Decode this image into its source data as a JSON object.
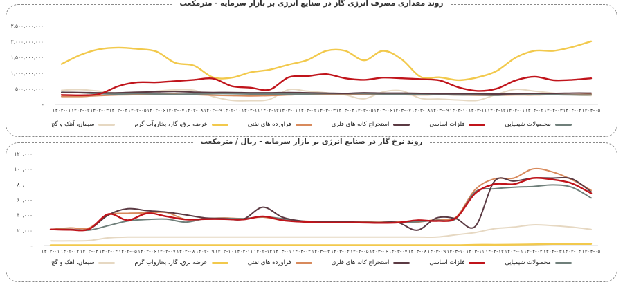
{
  "chart_data": [
    {
      "type": "line",
      "title": "روند مقداری مصرف انرژی گاز در صنایع انرژی بر بازار سرمایه - مترمکعب",
      "categories": [
        "۱۴۰۲-۰۱",
        "۱۴۰۲-۰۲",
        "۱۴۰۲-۰۳",
        "۱۴۰۲-۰۴",
        "۱۴۰۲-۰۵",
        "۱۴۰۲-۰۶",
        "۱۴۰۲-۰۷",
        "۱۴۰۲-۰۸",
        "۱۴۰۲-۰۹",
        "۱۴۰۲-۱۰",
        "۱۴۰۲-۱۱",
        "۱۴۰۲-۱۲",
        "۱۴۰۳-۰۱",
        "۱۴۰۳-۰۲",
        "۱۴۰۳-۰۳",
        "۱۴۰۳-۰۴",
        "۱۴۰۳-۰۵",
        "۱۴۰۳-۰۶",
        "۱۴۰۳-۰۷",
        "۱۴۰۳-۰۸",
        "۱۴۰۳-۰۹",
        "۱۴۰۳-۱۰",
        "۱۴۰۳-۱۱",
        "۱۴۰۳-۱۲",
        "۱۴۰۴-۰۱",
        "۱۴۰۴-۰۲",
        "۱۴۰۴-۰۳",
        "۱۴۰۴-۰۴",
        "۱۴۰۴-۰۵"
      ],
      "yticks": [
        0,
        500,
        1000,
        1500,
        2000,
        2500
      ],
      "ytick_labels": [
        "-",
        "۵۰۰,۰۰۰,۰۰۰",
        "۱,۰۰۰,۰۰۰,۰۰۰",
        "۱,۵۰۰,۰۰۰,۰۰۰",
        "۲,۰۰۰,۰۰۰,۰۰۰",
        "۲,۵۰۰,۰۰۰,۰۰۰"
      ],
      "ylim": [
        0,
        2500
      ],
      "series": [
        {
          "name": "محصولات شیمیایی",
          "color": "#6f7f7a",
          "values": [
            390,
            370,
            340,
            330,
            340,
            330,
            320,
            330,
            340,
            340,
            330,
            330,
            330,
            330,
            340,
            340,
            340,
            330,
            330,
            320,
            310,
            300,
            300,
            290,
            320,
            320,
            310,
            300,
            300
          ]
        },
        {
          "name": "فلزات اساسی",
          "color": "#c0141b",
          "values": [
            300,
            290,
            330,
            580,
            700,
            700,
            740,
            780,
            820,
            580,
            530,
            470,
            860,
            900,
            960,
            830,
            780,
            850,
            830,
            800,
            760,
            540,
            430,
            500,
            760,
            880,
            770,
            780,
            830
          ]
        },
        {
          "name": "استخراج کانه های فلزی",
          "color": "#5b3a43",
          "values": [
            380,
            380,
            370,
            370,
            390,
            400,
            410,
            390,
            380,
            380,
            370,
            370,
            380,
            370,
            360,
            350,
            370,
            360,
            360,
            350,
            340,
            340,
            340,
            330,
            340,
            350,
            350,
            360,
            360
          ]
        },
        {
          "name": "فراورده های نفتی",
          "color": "#d88a5c",
          "values": [
            250,
            250,
            280,
            300,
            310,
            330,
            330,
            310,
            290,
            280,
            270,
            280,
            300,
            320,
            310,
            310,
            330,
            320,
            310,
            300,
            310,
            300,
            290,
            290,
            300,
            300,
            310,
            310,
            320
          ]
        },
        {
          "name": "عرضه برق، گاز، بخاروآب گرم",
          "color": "#f2c94c",
          "values": [
            1280,
            1570,
            1750,
            1800,
            1760,
            1680,
            1320,
            1230,
            860,
            850,
            1020,
            1100,
            1260,
            1410,
            1700,
            1700,
            1400,
            1700,
            1420,
            870,
            860,
            770,
            860,
            1060,
            1480,
            1700,
            1700,
            1820,
            2000
          ]
        },
        {
          "name": "سیمان، آهک و گچ",
          "color": "#e6d8c2",
          "values": [
            450,
            470,
            420,
            350,
            320,
            420,
            460,
            450,
            250,
            130,
            120,
            160,
            470,
            420,
            370,
            300,
            180,
            400,
            430,
            190,
            170,
            140,
            130,
            320,
            480,
            420,
            360,
            300,
            280
          ]
        }
      ]
    },
    {
      "type": "line",
      "title": "روند نرخ گاز در صنایع انرژی بر بازار سرمایه - ریال / مترمکعب",
      "categories": [
        "۱۴۰۲-۰۱",
        "۱۴۰۲-۰۲",
        "۱۴۰۲-۰۳",
        "۱۴۰۲-۰۴",
        "۱۴۰۲-۰۵",
        "۱۴۰۲-۰۶",
        "۱۴۰۲-۰۷",
        "۱۴۰۲-۰۸",
        "۱۴۰۲-۰۹",
        "۱۴۰۲-۱۰",
        "۱۴۰۲-۱۱",
        "۱۴۰۲-۱۲",
        "۱۴۰۳-۰۱",
        "۱۴۰۳-۰۲",
        "۱۴۰۳-۰۳",
        "۱۴۰۳-۰۴",
        "۱۴۰۳-۰۵",
        "۱۴۰۳-۰۶",
        "۱۴۰۳-۰۷",
        "۱۴۰۳-۰۸",
        "۱۴۰۳-۰۹",
        "۱۴۰۳-۱۰",
        "۱۴۰۳-۱۱",
        "۱۴۰۳-۱۲",
        "۱۴۰۴-۰۱",
        "۱۴۰۴-۰۲",
        "۱۴۰۴-۰۳",
        "۱۴۰۴-۰۴",
        "۱۴۰۴-۰۵"
      ],
      "yticks": [
        0,
        20000,
        40000,
        60000,
        80000,
        100000,
        120000
      ],
      "ytick_labels": [
        "-",
        "۲۰,۰۰۰",
        "۴۰,۰۰۰",
        "۶۰,۰۰۰",
        "۸۰,۰۰۰",
        "۱۰۰,۰۰۰",
        "۱۲۰,۰۰۰"
      ],
      "ylim": [
        0,
        120000
      ],
      "series": [
        {
          "name": "محصولات شیمیایی",
          "color": "#6f7f7a",
          "values": [
            21000,
            20500,
            20000,
            26000,
            32000,
            34000,
            34500,
            30500,
            35000,
            35500,
            35000,
            37500,
            35000,
            31000,
            30000,
            30000,
            30000,
            29500,
            30000,
            31000,
            33000,
            35000,
            70000,
            74000,
            76000,
            77000,
            79000,
            76000,
            62000
          ]
        },
        {
          "name": "فلزات اساسی",
          "color": "#c0141b",
          "values": [
            21000,
            20500,
            21500,
            41000,
            33000,
            42000,
            38000,
            34000,
            34500,
            34500,
            34000,
            38000,
            33000,
            31000,
            30000,
            30000,
            30000,
            29500,
            30000,
            33000,
            32000,
            36000,
            68000,
            80000,
            80000,
            88000,
            86000,
            81000,
            68000
          ]
        },
        {
          "name": "استخراج کانه های فلزی",
          "color": "#5b3a43",
          "values": [
            21000,
            21000,
            21500,
            40000,
            48000,
            45500,
            43500,
            40000,
            36000,
            35000,
            34500,
            50000,
            37000,
            32000,
            31000,
            31000,
            30500,
            30000,
            30000,
            20000,
            36000,
            35000,
            25000,
            84000,
            84000,
            88000,
            88000,
            87000,
            70000
          ]
        },
        {
          "name": "فراورده های نفتی",
          "color": "#d88a5c",
          "values": [
            21000,
            23000,
            23000,
            40000,
            42000,
            42500,
            43000,
            34000,
            35000,
            36000,
            35000,
            37000,
            33000,
            32000,
            31000,
            31000,
            31000,
            30500,
            31000,
            30500,
            34000,
            37000,
            73000,
            87000,
            88000,
            100000,
            96000,
            86000,
            72000
          ]
        },
        {
          "name": "عرضه برق، گاز، بخاروآب گرم",
          "color": "#f2c94c",
          "values": [
            500,
            500,
            500,
            500,
            500,
            500,
            500,
            500,
            500,
            500,
            500,
            500,
            500,
            500,
            500,
            500,
            500,
            500,
            500,
            500,
            500,
            500,
            1000,
            1000,
            1200,
            1500,
            2000,
            2000,
            2000
          ]
        },
        {
          "name": "سیمان، آهک و گچ",
          "color": "#e6d8c2",
          "values": [
            6000,
            6000,
            6500,
            10000,
            11000,
            11000,
            11000,
            11000,
            11000,
            11000,
            11000,
            11000,
            11000,
            11000,
            11000,
            11000,
            11000,
            11000,
            11000,
            11000,
            11000,
            14000,
            17000,
            22000,
            24000,
            27000,
            26000,
            24000,
            21000
          ]
        }
      ]
    }
  ],
  "legend_order": [
    "محصولات شیمیایی",
    "فلزات اساسی",
    "استخراج کانه های فلزی",
    "فراورده های نفتی",
    "عرضه برق، گاز، بخاروآب گرم",
    "سیمان، آهک و گچ"
  ]
}
